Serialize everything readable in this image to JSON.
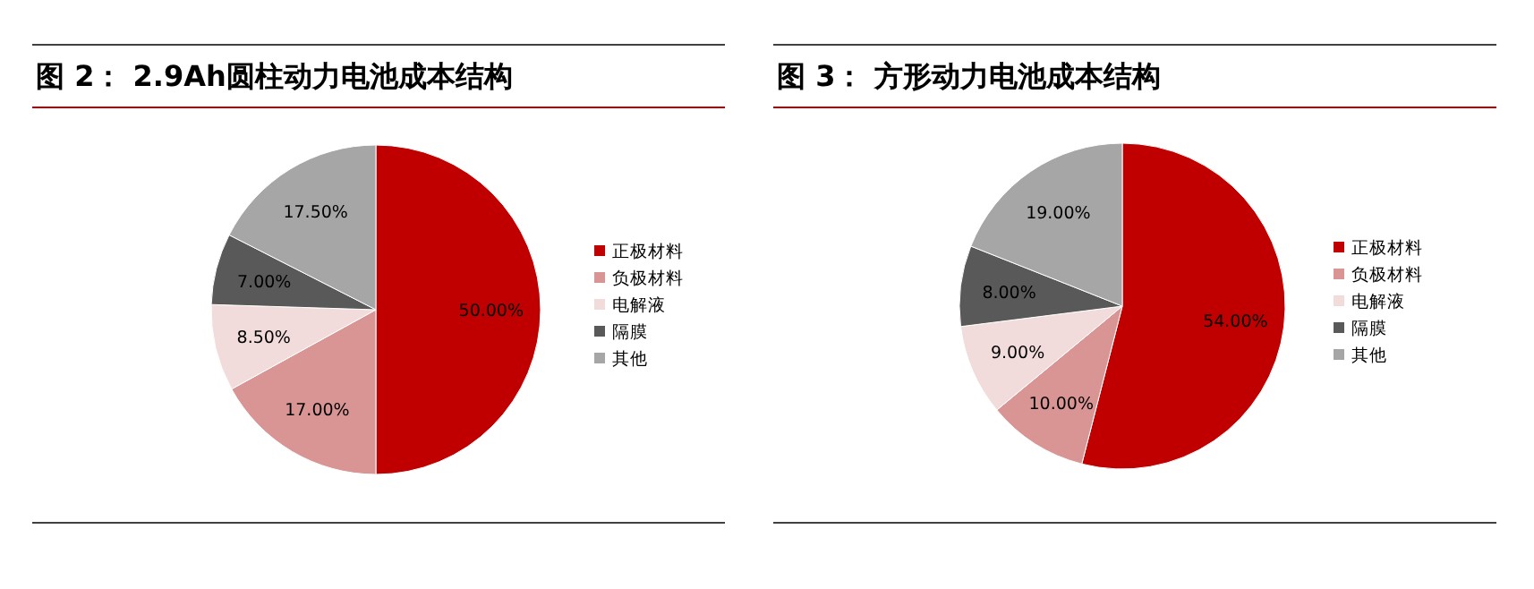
{
  "chart_data": [
    {
      "type": "pie",
      "title": "图 2： 2.9Ah圆柱动力电池成本结构",
      "categories": [
        "正极材料",
        "负极材料",
        "电解液",
        "隔膜",
        "其他"
      ],
      "values": [
        50,
        17,
        8.5,
        7,
        17.5
      ],
      "colors": [
        "#c00000",
        "#d99594",
        "#f2dcdb",
        "#595959",
        "#a6a6a6"
      ],
      "value_labels": [
        "50.00%",
        "17.00%",
        "8.50%",
        "7.00%",
        "17.50%"
      ],
      "legend": "right"
    },
    {
      "type": "pie",
      "title": "图 3： 方形动力电池成本结构",
      "categories": [
        "正极材料",
        "负极材料",
        "电解液",
        "隔膜",
        "其他"
      ],
      "values": [
        54,
        10,
        9,
        8,
        19
      ],
      "colors": [
        "#c00000",
        "#d99594",
        "#f2dcdb",
        "#595959",
        "#a6a6a6"
      ],
      "value_labels": [
        "54.00%",
        "10.00%",
        "9.00%",
        "8.00%",
        "19.00%"
      ],
      "legend": "right"
    }
  ]
}
